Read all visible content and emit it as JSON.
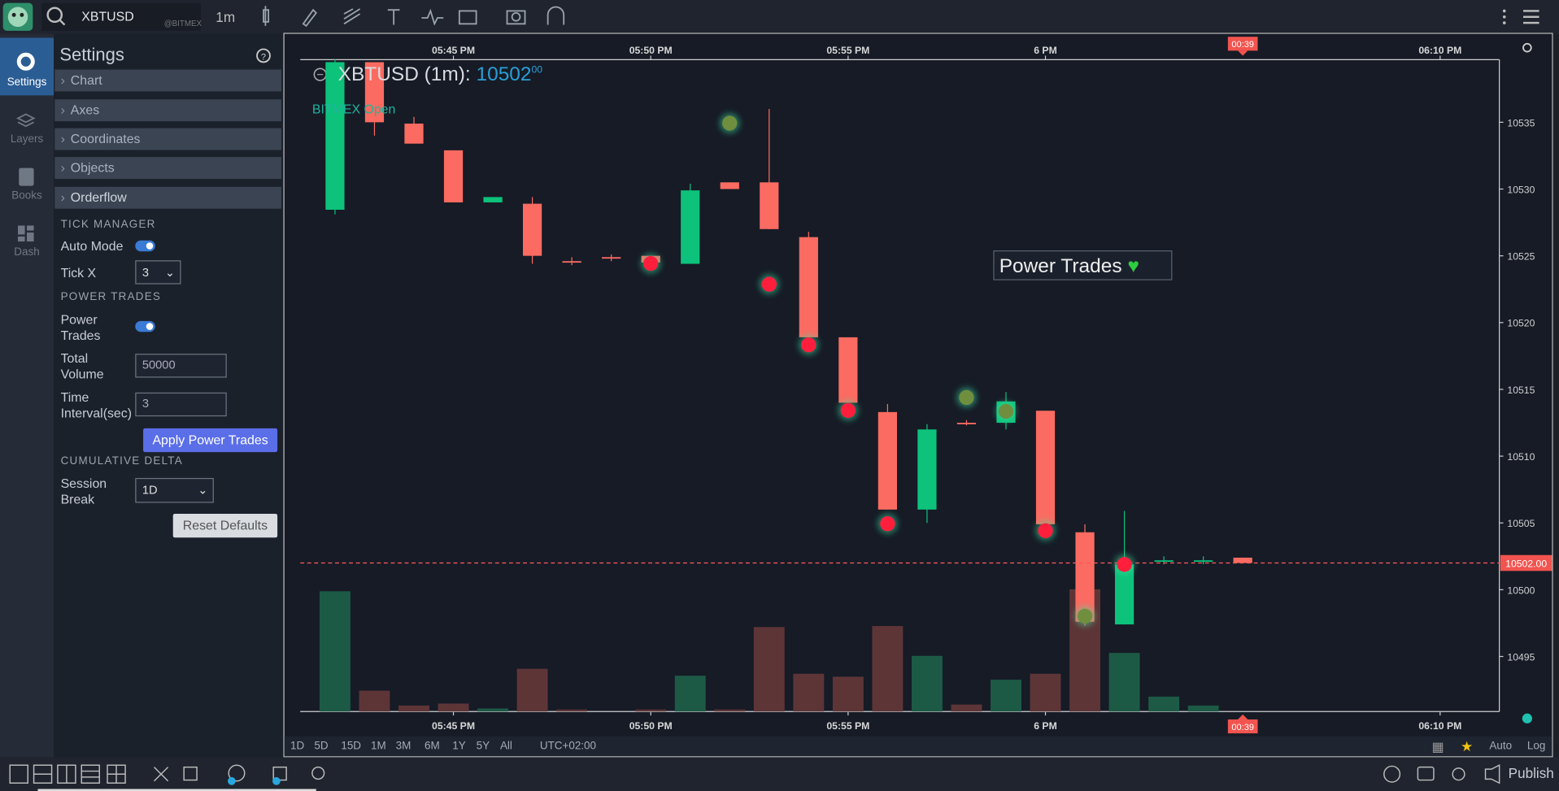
{
  "toolbar": {
    "symbol": "XBTUSD",
    "exchange": "@BITMEX",
    "interval": "1m"
  },
  "nav": [
    "Settings",
    "Layers",
    "Books",
    "Dash"
  ],
  "settings": {
    "title": "Settings",
    "sections": [
      "Chart",
      "Axes",
      "Coordinates",
      "Objects",
      "Orderflow"
    ],
    "tick_manager": {
      "heading": "TICK MANAGER",
      "auto_mode": "Auto Mode",
      "tick_x": "Tick X",
      "tick_x_value": "3"
    },
    "power_trades": {
      "heading": "POWER TRADES",
      "label": "Power Trades",
      "total_volume": "Total Volume",
      "total_volume_value": "50000",
      "time_interval": "Time Interval(sec)",
      "time_interval_value": "3",
      "apply": "Apply Power Trades"
    },
    "cumulative_delta": {
      "heading": "CUMULATIVE DELTA",
      "session_break": "Session Break",
      "session_break_value": "1D"
    },
    "reset": "Reset Defaults"
  },
  "chart": {
    "type": "candlestick",
    "title": "XBTUSD (1m):",
    "price": "10502",
    "price_decimals": "00",
    "legend": "BITMEX Open",
    "annotation": "Power Trades",
    "open": [
      10528.45,
      10539.5,
      10534.9,
      10532.9,
      10529.0,
      10528.9,
      10524.6,
      10524.9,
      10525.0,
      10524.4,
      10530.5,
      10530.5,
      10526.4,
      10518.9,
      10513.3,
      10506.0,
      10512.5,
      10512.5,
      10513.4,
      10504.3,
      10497.4,
      10502.1,
      10502.1,
      10502.4
    ],
    "high": [
      10539.7,
      10539.5,
      10535.4,
      10532.9,
      10529.4,
      10529.4,
      10524.9,
      10525.1,
      10525.0,
      10530.4,
      10530.5,
      10536.0,
      10526.8,
      10518.9,
      10513.9,
      10512.4,
      10512.7,
      10514.8,
      10513.4,
      10504.9,
      10505.9,
      10502.5,
      10502.5,
      10502.4
    ],
    "low": [
      10528.1,
      10534.0,
      10533.4,
      10529.0,
      10529.0,
      10524.4,
      10524.3,
      10524.6,
      10524.3,
      10524.4,
      10530.0,
      10527.0,
      10518.9,
      10514.0,
      10506.0,
      10505.0,
      10512.3,
      10512.0,
      10504.9,
      10497.3,
      10497.4,
      10501.9,
      10501.9,
      10502.0
    ],
    "close": [
      10539.5,
      10535.0,
      10533.4,
      10529.0,
      10529.4,
      10525.0,
      10524.5,
      10524.8,
      10524.5,
      10529.9,
      10530.0,
      10527.0,
      10518.9,
      10514.0,
      10506.0,
      10512.0,
      10512.4,
      10514.1,
      10504.9,
      10497.6,
      10501.9,
      10502.2,
      10502.2,
      10502.0
    ],
    "volume": [
      121,
      21,
      6,
      8,
      3,
      43,
      2,
      0,
      2,
      36,
      2,
      85,
      38,
      35,
      86,
      56,
      7,
      32,
      38,
      123,
      59,
      15,
      6,
      0
    ],
    "volume_lim": [
      0,
      656
    ],
    "up_color": "#0dc27a",
    "down_color": "#fb6b61",
    "up_volume_color": "#1d5a46",
    "down_volume_color": "#5e3537",
    "power_trades": {
      "index": [
        8,
        11,
        12,
        13,
        14,
        18,
        20,
        10,
        16,
        17,
        19
      ],
      "price": [
        10524.43,
        10522.87,
        10518.33,
        10513.42,
        10504.94,
        10504.42,
        10501.89,
        10534.93,
        10514.39,
        10513.35,
        10498.02
      ],
      "color": [
        "#ff1f3d",
        "#ff1f3d",
        "#ff1f3d",
        "#ff1f3d",
        "#ff1f3d",
        "#ff1f3d",
        "#ff1f3d",
        "#6f8f3f",
        "#6f8f3f",
        "#6f8f3f",
        "#6f8f3f"
      ]
    },
    "last_price": 10502,
    "last_price_label": "10502.00",
    "countdown": "00:39",
    "xlim": [
      -0.88,
      29.5
    ],
    "xticks": [
      {
        "value": 3,
        "label": "05:45 PM"
      },
      {
        "value": 8,
        "label": "05:50 PM"
      },
      {
        "value": 13,
        "label": "05:55 PM"
      },
      {
        "value": 18,
        "label": "6 PM"
      },
      {
        "value": 28,
        "label": "06:10 PM"
      }
    ],
    "ylim": [
      10490.88,
      10539.69
    ],
    "yticks": [
      10495,
      10500,
      10505,
      10510,
      10515,
      10520,
      10525,
      10530,
      10535
    ]
  },
  "range_bar": {
    "ranges": [
      "1D",
      "5D",
      "15D",
      "1M",
      "3M",
      "6M",
      "1Y",
      "5Y",
      "All"
    ],
    "timezone": "UTC+02:00",
    "auto": "Auto",
    "log": "Log"
  },
  "bottom": {
    "publish": "Publish"
  }
}
